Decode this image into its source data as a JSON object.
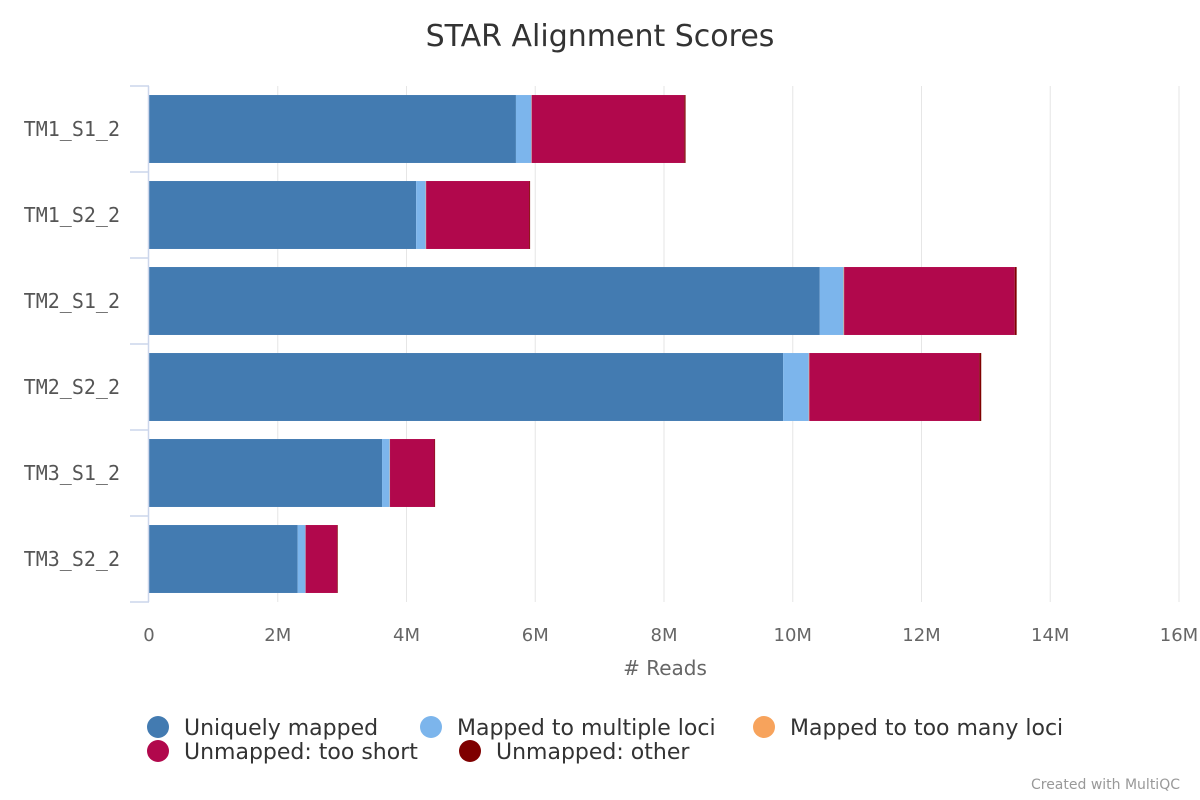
{
  "chart_data": {
    "type": "bar",
    "orientation": "horizontal",
    "stacked": true,
    "title": "STAR Alignment Scores",
    "xlabel": "# Reads",
    "ylabel": "",
    "xlim": [
      0,
      16000000
    ],
    "x_ticks": [
      {
        "value": 0,
        "label": "0"
      },
      {
        "value": 2000000,
        "label": "2M"
      },
      {
        "value": 4000000,
        "label": "4M"
      },
      {
        "value": 6000000,
        "label": "6M"
      },
      {
        "value": 8000000,
        "label": "8M"
      },
      {
        "value": 10000000,
        "label": "10M"
      },
      {
        "value": 12000000,
        "label": "12M"
      },
      {
        "value": 14000000,
        "label": "14M"
      },
      {
        "value": 16000000,
        "label": "16M"
      }
    ],
    "grid": true,
    "legend_position": "bottom",
    "categories": [
      "TM1_S1_2",
      "TM1_S2_2",
      "TM2_S1_2",
      "TM2_S2_2",
      "TM3_S1_2",
      "TM3_S2_2"
    ],
    "series": [
      {
        "name": "Uniquely mapped",
        "color": "#437bb1",
        "values": [
          5700000,
          4150000,
          10420000,
          9850000,
          3620000,
          2310000
        ]
      },
      {
        "name": "Mapped to multiple loci",
        "color": "#7cb5ec",
        "values": [
          240000,
          150000,
          370000,
          400000,
          120000,
          120000
        ]
      },
      {
        "name": "Mapped to too many loci",
        "color": "#f7a35c",
        "values": [
          5000,
          5000,
          8000,
          8000,
          4000,
          3000
        ]
      },
      {
        "name": "Unmapped: too short",
        "color": "#b1084c",
        "values": [
          2370000,
          1600000,
          2650000,
          2640000,
          690000,
          490000
        ]
      },
      {
        "name": "Unmapped: other",
        "color": "#7f0000",
        "values": [
          20000,
          15000,
          30000,
          30000,
          10000,
          10000
        ]
      }
    ]
  },
  "footer": {
    "credit": "Created with MultiQC"
  }
}
